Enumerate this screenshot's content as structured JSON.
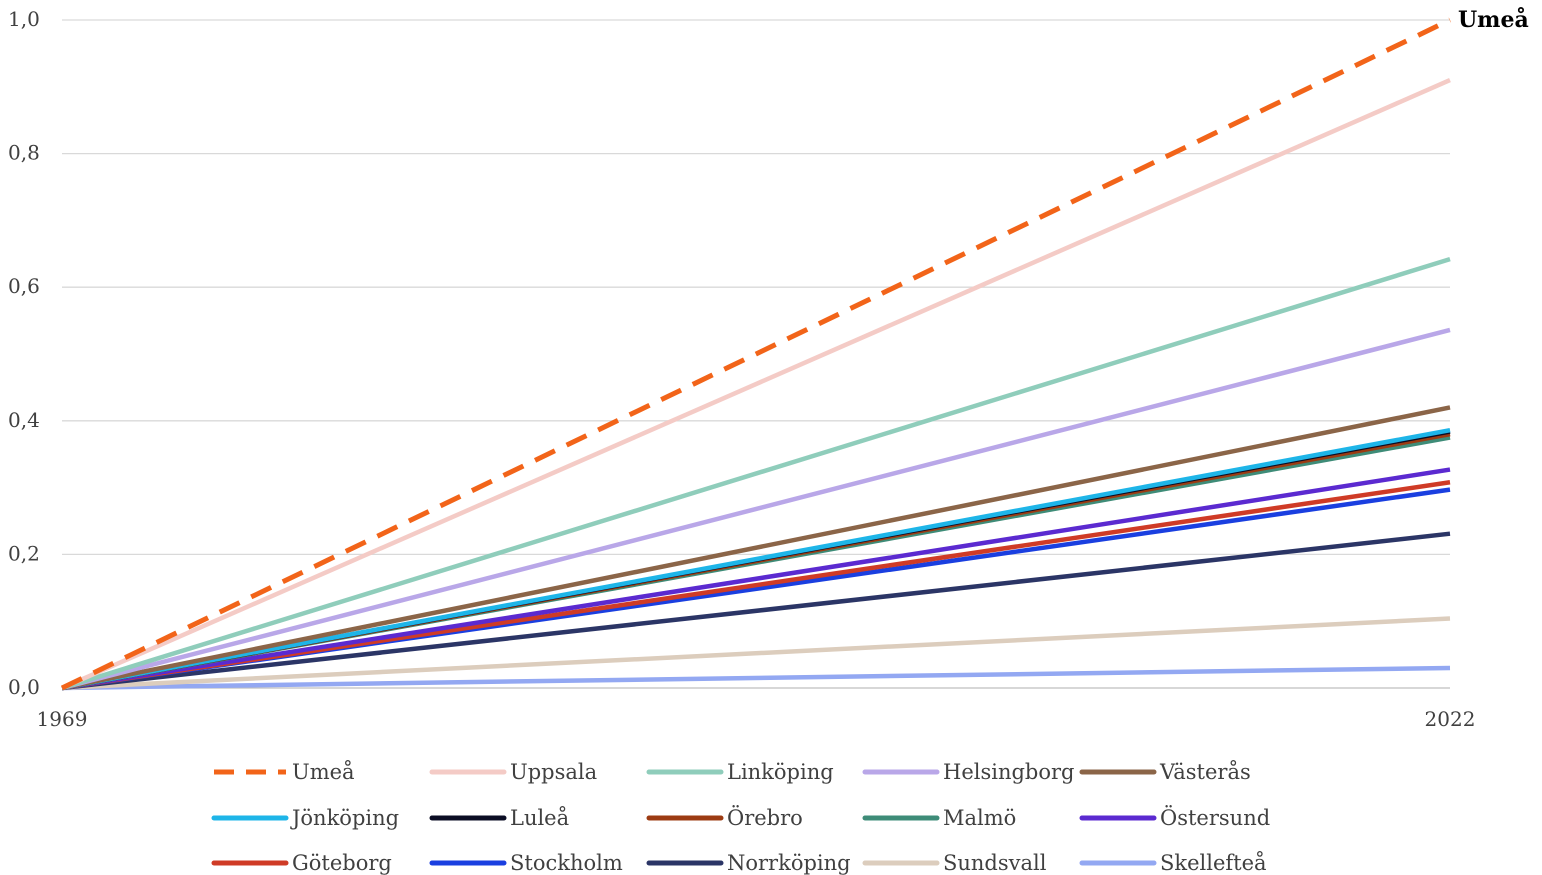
{
  "chart_data": {
    "type": "line",
    "title": "",
    "xlabel": "",
    "ylabel": "",
    "x": [
      "1969",
      "2022"
    ],
    "ylim": [
      0,
      1.0
    ],
    "yticks": [
      "0,0",
      "0,2",
      "0,4",
      "0,6",
      "0,8",
      "1,0"
    ],
    "grid": true,
    "legend_position": "bottom",
    "end_label": "Umeå",
    "series": [
      {
        "name": "Umeå",
        "values": [
          0,
          1.0
        ],
        "color": "#f26419",
        "dashed": true
      },
      {
        "name": "Uppsala",
        "values": [
          0,
          0.91
        ],
        "color": "#f4cbc6",
        "dashed": false
      },
      {
        "name": "Linköping",
        "values": [
          0,
          0.642
        ],
        "color": "#8fcdbb",
        "dashed": false
      },
      {
        "name": "Helsingborg",
        "values": [
          0,
          0.536
        ],
        "color": "#b9a7e8",
        "dashed": false
      },
      {
        "name": "Västerås",
        "values": [
          0,
          0.42
        ],
        "color": "#8b6548",
        "dashed": false
      },
      {
        "name": "Jönköping",
        "values": [
          0,
          0.386
        ],
        "color": "#1eb5e8",
        "dashed": false
      },
      {
        "name": "Luleå",
        "values": [
          0,
          0.384
        ],
        "color": "#0b0d24",
        "dashed": false
      },
      {
        "name": "Örebro",
        "values": [
          0,
          0.38
        ],
        "color": "#9c3b12",
        "dashed": false
      },
      {
        "name": "Malmö",
        "values": [
          0,
          0.375
        ],
        "color": "#3e8c78",
        "dashed": false
      },
      {
        "name": "Östersund",
        "values": [
          0,
          0.327
        ],
        "color": "#5b2ad0",
        "dashed": false
      },
      {
        "name": "Göteborg",
        "values": [
          0,
          0.308
        ],
        "color": "#cf3b26",
        "dashed": false
      },
      {
        "name": "Stockholm",
        "values": [
          0,
          0.297
        ],
        "color": "#1a3fe0",
        "dashed": false
      },
      {
        "name": "Norrköping",
        "values": [
          0,
          0.231
        ],
        "color": "#2b3566",
        "dashed": false
      },
      {
        "name": "Sundsvall",
        "values": [
          0,
          0.104
        ],
        "color": "#dccdbd",
        "dashed": false
      },
      {
        "name": "Skellefteå",
        "values": [
          0,
          0.03
        ],
        "color": "#93a8f2",
        "dashed": false
      }
    ]
  }
}
